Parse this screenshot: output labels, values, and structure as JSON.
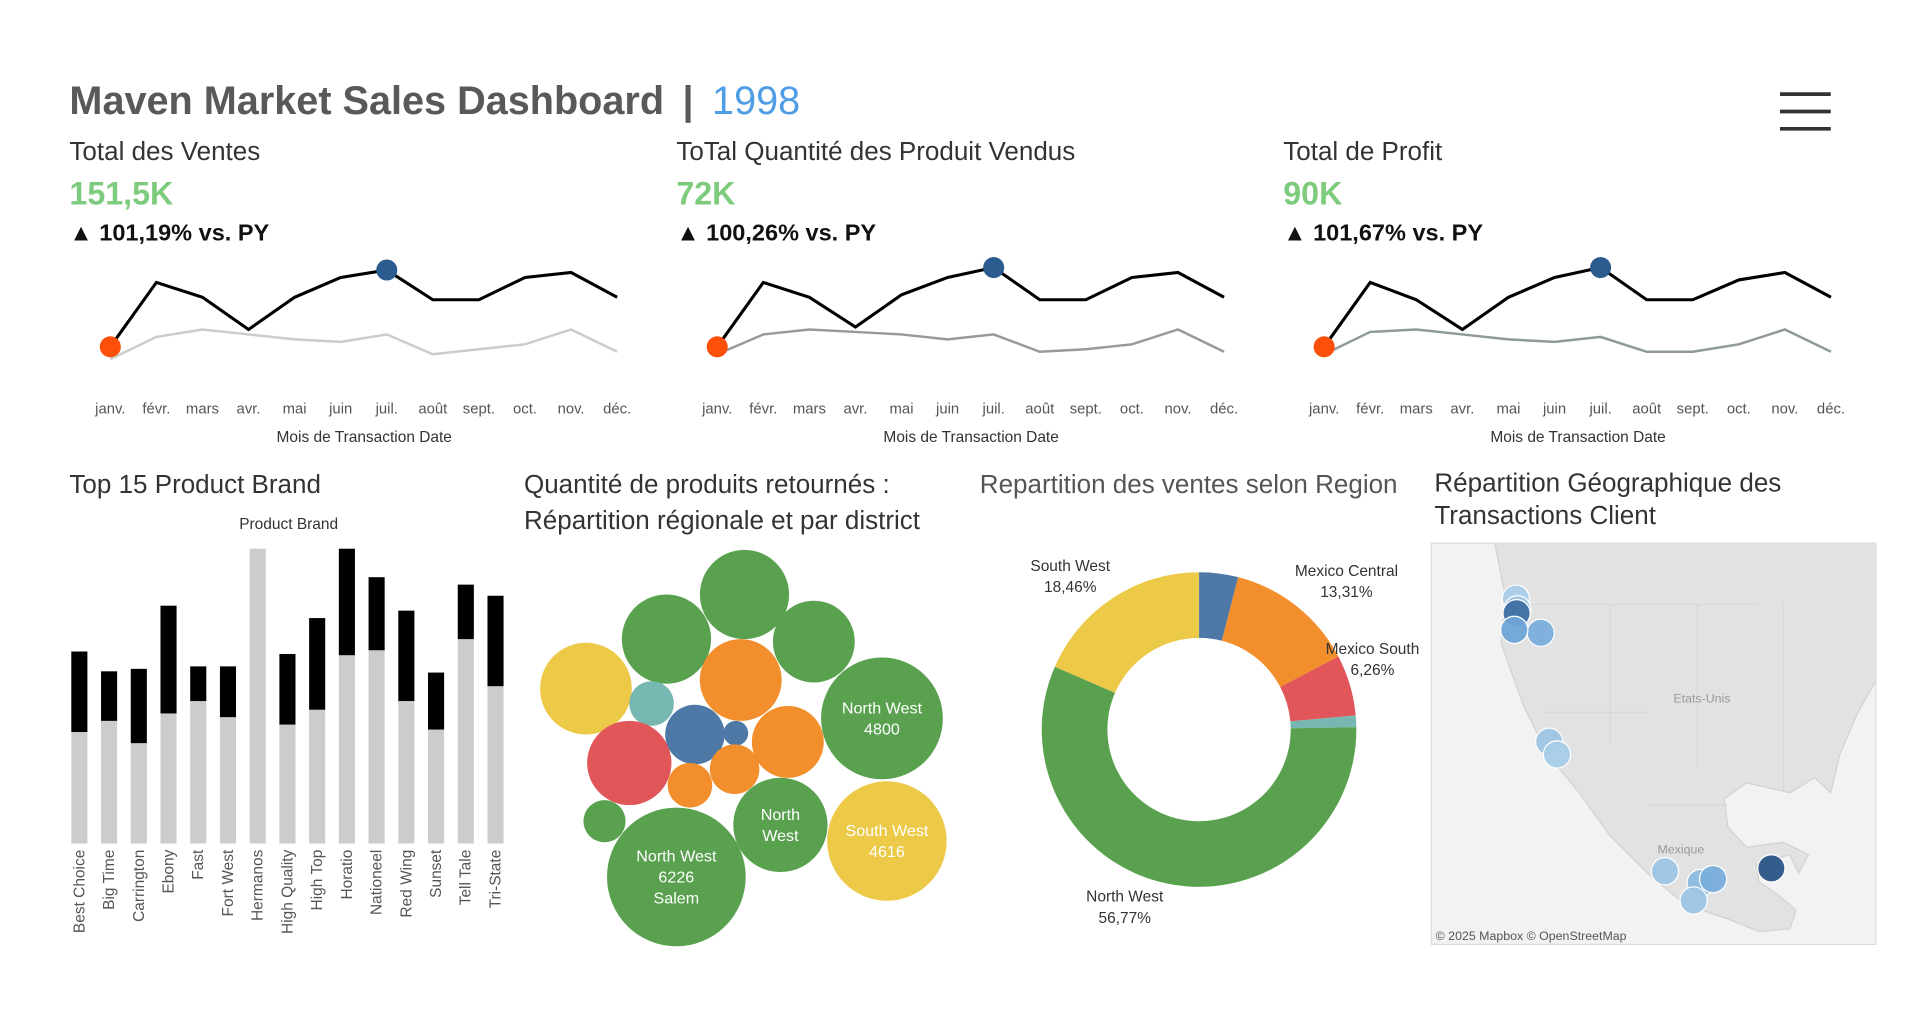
{
  "header": {
    "title": "Maven Market Sales Dashboard",
    "separator": "|",
    "year": "1998"
  },
  "chart_data": [
    {
      "type": "line",
      "title": "Total des Ventes",
      "kpi": "151,5K",
      "change": "▲ 101,19% vs.  PY",
      "categories": [
        "janv.",
        "févr.",
        "mars",
        "avr.",
        "mai",
        "juin",
        "juil.",
        "août",
        "sept.",
        "oct.",
        "nov.",
        "déc."
      ],
      "x_label": "Mois de Transaction Date",
      "series": [
        {
          "color": "#000000",
          "values": [
            10.5,
            13.1,
            12.5,
            11.2,
            12.5,
            13.3,
            13.6,
            12.4,
            12.4,
            13.3,
            13.5,
            12.5
          ]
        },
        {
          "color": "#cccccc",
          "values": [
            10.0,
            10.9,
            11.2,
            11.0,
            10.8,
            10.7,
            11.0,
            10.2,
            10.4,
            10.6,
            11.2,
            10.3
          ]
        }
      ],
      "ylim": [
        9.5,
        14
      ],
      "min_color": "#fc4f0a",
      "max_color": "#2a5c8f"
    },
    {
      "type": "line",
      "title": "ToTal Quantité des Produit Vendus",
      "kpi": "72K",
      "change": "▲ 100,26% vs. PY",
      "categories": [
        "janv.",
        "févr.",
        "mars",
        "avr.",
        "mai",
        "juin",
        "juil.",
        "août",
        "sept.",
        "oct.",
        "nov.",
        "déc."
      ],
      "x_label": "Mois de Transaction Date",
      "series": [
        {
          "color": "#000000",
          "values": [
            10.5,
            13.1,
            12.5,
            11.3,
            12.6,
            13.3,
            13.7,
            12.4,
            12.4,
            13.3,
            13.5,
            12.5
          ]
        },
        {
          "color": "#999999",
          "values": [
            10.2,
            11.0,
            11.2,
            11.1,
            11.0,
            10.8,
            11.0,
            10.3,
            10.4,
            10.6,
            11.2,
            10.3
          ]
        }
      ],
      "ylim": [
        9.5,
        14
      ],
      "min_color": "#fc4f0a",
      "max_color": "#2a5c8f"
    },
    {
      "type": "line",
      "title": "Total de Profit",
      "kpi": "90K",
      "change": "▲ 101,67% vs. PY",
      "categories": [
        "janv.",
        "févr.",
        "mars",
        "avr.",
        "mai",
        "juin",
        "juil.",
        "août",
        "sept.",
        "oct.",
        "nov.",
        "déc."
      ],
      "x_label": "Mois de Transaction Date",
      "series": [
        {
          "color": "#000000",
          "values": [
            10.5,
            13.1,
            12.4,
            11.2,
            12.5,
            13.3,
            13.7,
            12.4,
            12.4,
            13.2,
            13.5,
            12.5
          ]
        },
        {
          "color": "#8f9a98",
          "values": [
            10.2,
            11.1,
            11.2,
            11.0,
            10.8,
            10.7,
            10.9,
            10.3,
            10.3,
            10.6,
            11.2,
            10.3
          ]
        }
      ],
      "ylim": [
        9.5,
        14
      ],
      "min_color": "#fc4f0a",
      "max_color": "#2a5c8f"
    },
    {
      "type": "bar",
      "title": "Top 15 Product Brand",
      "x_label": "Product Brand",
      "stacked": true,
      "categories": [
        "Best Choice",
        "Big Time",
        "Carrington",
        "Ebony",
        "Fast",
        "Fort West",
        "Hermanos",
        "High Quality",
        "High Top",
        "Horatio",
        "Nationeel",
        "Red Wing",
        "Sunset",
        "Tell Tale",
        "Tri-State"
      ],
      "series": [
        {
          "color": "#cccccc",
          "values": [
            90,
            99,
            81,
            105,
            115,
            102,
            238,
            96,
            108,
            152,
            156,
            115,
            92,
            165,
            127
          ]
        },
        {
          "color": "#000000",
          "values": [
            65,
            40,
            60,
            87,
            28,
            41,
            0,
            57,
            74,
            86,
            59,
            73,
            46,
            44,
            73
          ]
        }
      ],
      "ylim": [
        0,
        238
      ]
    },
    {
      "type": "bubble",
      "title": [
        "Quantité de produits retournés :",
        "Répartition régionale et par district"
      ],
      "values": [
        2578,
        2578,
        2166,
        2166,
        2723,
        644,
        1146,
        199,
        1673,
        2300,
        796,
        644,
        2873,
        575,
        4800,
        4616,
        6226
      ],
      "colors": [
        "#59a14f",
        "#59a14f",
        "#59a14f",
        "#f28e2b",
        "#edc948",
        "#76b7b2",
        "#4e79a7",
        "#4e79a7",
        "#f28e2b",
        "#e15759",
        "#f28e2b",
        "#f28e2b",
        "#59a14f",
        "#59a14f",
        "#59a14f",
        "#edc948",
        "#59a14f"
      ],
      "labels": [
        null,
        null,
        null,
        null,
        null,
        null,
        null,
        null,
        null,
        null,
        null,
        null,
        [
          "North",
          "West"
        ],
        null,
        [
          "North West"
        ],
        [
          "South West"
        ],
        [
          "North West"
        ]
      ],
      "value_labels": [
        null,
        null,
        null,
        null,
        null,
        null,
        null,
        null,
        null,
        null,
        null,
        null,
        null,
        null,
        "4800",
        "4616",
        "6226"
      ],
      "sublabels": [
        null,
        null,
        null,
        null,
        null,
        null,
        null,
        null,
        null,
        null,
        null,
        null,
        null,
        null,
        null,
        null,
        "Salem"
      ]
    },
    {
      "type": "donut",
      "title": "Repartition des ventes selon Region",
      "categories": [
        null,
        "Mexico Central",
        "Mexico South",
        null,
        "North West",
        "South West"
      ],
      "values": [
        4.0,
        13.31,
        6.26,
        1.2,
        56.77,
        18.46
      ],
      "value_labels": [
        null,
        "13,31%",
        "6,26%",
        null,
        "56,77%",
        "18,46%"
      ],
      "colors": [
        "#4e79a7",
        "#f28e2b",
        "#e15759",
        "#76b7b2",
        "#59a14f",
        "#edc948"
      ]
    },
    {
      "type": "map",
      "title": [
        "Répartition Géographique des",
        "Transactions Client"
      ],
      "labels": [
        "Etats-Unis",
        "Mexique"
      ],
      "attribution": "© 2025 Mapbox © OpenStreetMap",
      "points": {
        "lon": [
          -122.5,
          -122.3,
          -122.4,
          -119.3,
          -122.7,
          -118.2,
          -117.2,
          -103.3,
          -98.7,
          -97.1,
          -99.6,
          -89.6
        ],
        "lat": [
          48.7,
          47.6,
          47.2,
          45.2,
          45.5,
          34.0,
          32.7,
          20.7,
          19.5,
          19.9,
          17.7,
          21.0
        ],
        "colors": [
          "#a9cde9",
          "#9ec5e5",
          "#3f6fa3",
          "#79aedb",
          "#6fa5d6",
          "#9ec5e5",
          "#a9cde9",
          "#9ec5e5",
          "#8cbbe1",
          "#79aedb",
          "#9ec5e5",
          "#2a5485"
        ]
      }
    }
  ]
}
